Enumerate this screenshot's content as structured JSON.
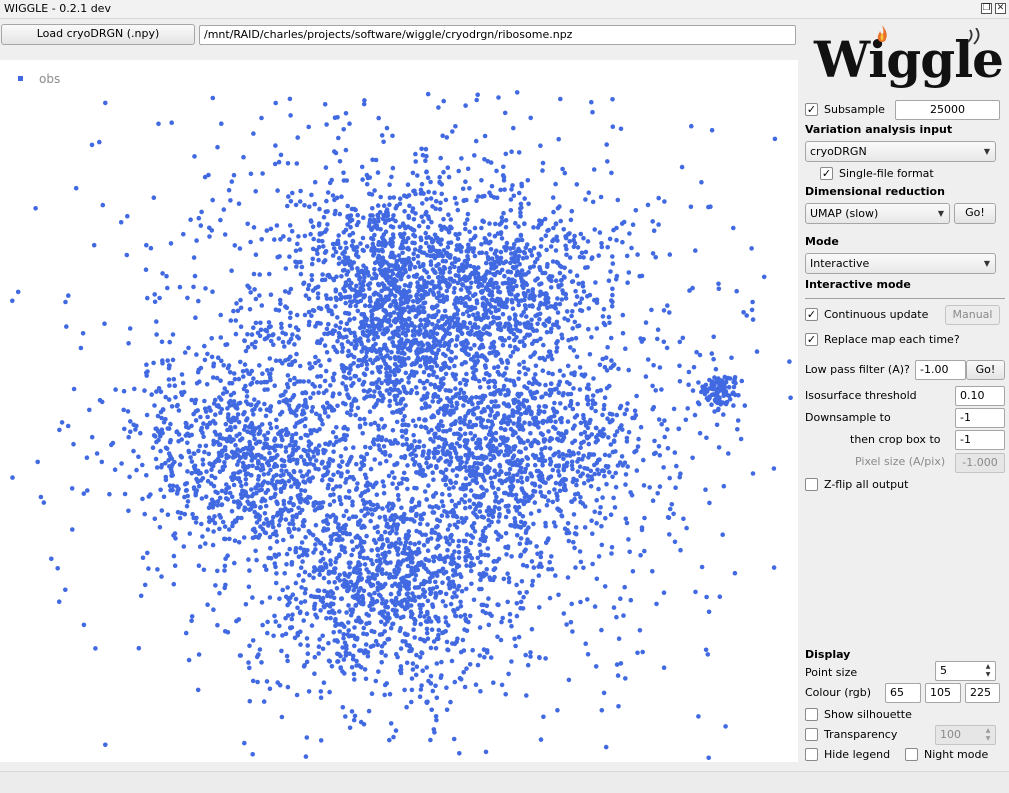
{
  "window": {
    "title": "WIGGLE - 0.2.1 dev"
  },
  "toolbar": {
    "load_button": "Load cryoDRGN (.npy)",
    "path": "/mnt/RAID/charles/projects/software/wiggle/cryodrgn/ribosome.npz"
  },
  "logo": {
    "text": "Wiggle",
    "flame_color": "#e8702a"
  },
  "legend": {
    "label": "obs",
    "color": "#4169e1"
  },
  "panel": {
    "subsample": {
      "label": "Subsample",
      "checked": true,
      "value": "25000"
    },
    "variation_heading": "Variation analysis input",
    "variation_select": "cryoDRGN",
    "single_file": {
      "label": "Single-file format",
      "checked": true
    },
    "dimred_heading": "Dimensional reduction",
    "dimred_select": "UMAP (slow)",
    "go_label": "Go!",
    "mode_heading": "Mode",
    "mode_select": "Interactive",
    "interactive_heading": "Interactive mode",
    "continuous_update": {
      "label": "Continuous update",
      "checked": true
    },
    "manual_button": "Manual",
    "replace_map": {
      "label": "Replace map each time?",
      "checked": true
    },
    "low_pass": {
      "label": "Low pass filter (A)?",
      "value": "-1.00",
      "go": "Go!"
    },
    "iso_threshold": {
      "label": "Isosurface threshold",
      "value": "0.10"
    },
    "downsample": {
      "label": "Downsample to",
      "value": "-1"
    },
    "crop_box": {
      "label": "then crop box to",
      "value": "-1"
    },
    "pixel_size": {
      "label": "Pixel size (A/pix)",
      "value": "-1.000"
    },
    "zflip": {
      "label": "Z-flip all output",
      "checked": false
    }
  },
  "display": {
    "heading": "Display",
    "point_size": {
      "label": "Point size",
      "value": "5"
    },
    "colour": {
      "label": "Colour (rgb)",
      "r": "65",
      "g": "105",
      "b": "225"
    },
    "silhouette": {
      "label": "Show silhouette",
      "checked": false
    },
    "transparency": {
      "label": "Transparency",
      "checked": false,
      "value": "100"
    },
    "hide_legend": {
      "label": "Hide legend",
      "checked": false
    },
    "night_mode": {
      "label": "Night mode",
      "checked": false
    }
  },
  "icons": {
    "check": "check-icon",
    "dropdown": "chevron-down-icon"
  },
  "plot_colors": {
    "point": "#4169e1",
    "background": "#ffffff"
  }
}
